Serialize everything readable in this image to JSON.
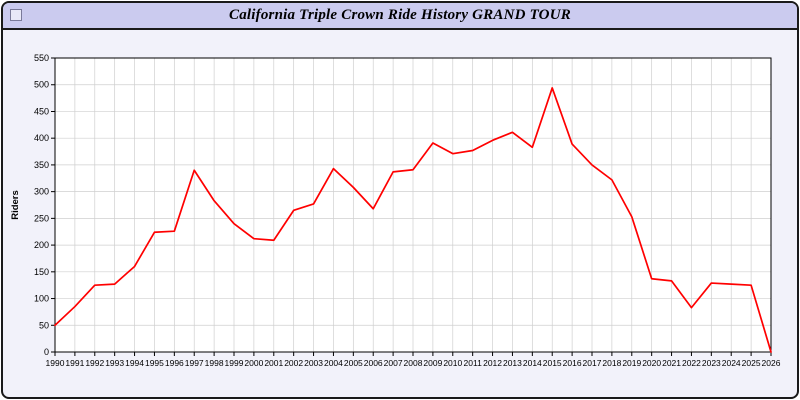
{
  "window": {
    "title": "California Triple Crown Ride History GRAND TOUR"
  },
  "colors": {
    "line": "#ff0000",
    "titlebar": "#cbcbef",
    "grid": "#cfcfcf",
    "plot_background": "#ffffff",
    "panel_background": "#f2f2fa"
  },
  "chart_data": {
    "type": "line",
    "title": "California Triple Crown Ride History GRAND TOUR",
    "xlabel": "",
    "ylabel": "Riders",
    "ylim": [
      0,
      550
    ],
    "ytick_step": 50,
    "grid": true,
    "legend_position": "none",
    "categories": [
      "1990",
      "1991",
      "1992",
      "1993",
      "1994",
      "1995",
      "1996",
      "1997",
      "1998",
      "1999",
      "2000",
      "2001",
      "2002",
      "2003",
      "2004",
      "2005",
      "2006",
      "2007",
      "2008",
      "2009",
      "2010",
      "2011",
      "2012",
      "2013",
      "2014",
      "2015",
      "2016",
      "2017",
      "2018",
      "2019",
      "2020",
      "2021",
      "2022",
      "2023",
      "2024",
      "2025",
      "2026"
    ],
    "series": [
      {
        "name": "Riders",
        "color": "#ff0000",
        "values": [
          50,
          85,
          125,
          127,
          160,
          224,
          226,
          340,
          283,
          240,
          212,
          209,
          265,
          277,
          343,
          308,
          268,
          337,
          341,
          391,
          371,
          377,
          396,
          411,
          383,
          494,
          389,
          350,
          322,
          253,
          137,
          133,
          83,
          129,
          127,
          125,
          0
        ]
      }
    ]
  }
}
